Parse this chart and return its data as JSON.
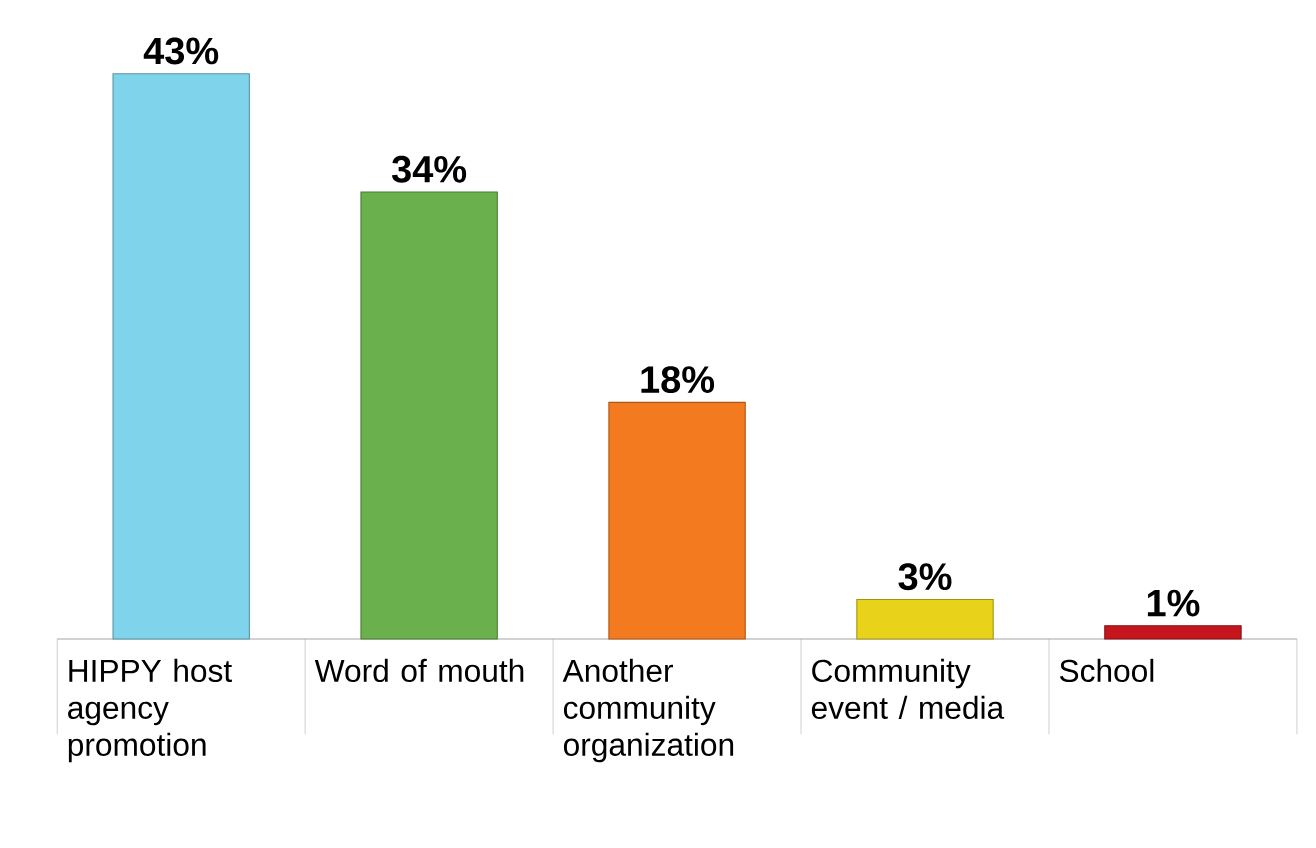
{
  "chart_data": {
    "type": "bar",
    "categories": [
      "HIPPY host agency promotion",
      "Word of mouth",
      "Another community organization",
      "Community event / media",
      "School"
    ],
    "values": [
      43,
      34,
      18,
      3,
      1
    ],
    "colors": [
      "#7fd3ea",
      "#6ab04c",
      "#f47a20",
      "#e8d21a",
      "#c4161c"
    ],
    "value_labels": [
      "43%",
      "34%",
      "18%",
      "3%",
      "1%"
    ]
  }
}
